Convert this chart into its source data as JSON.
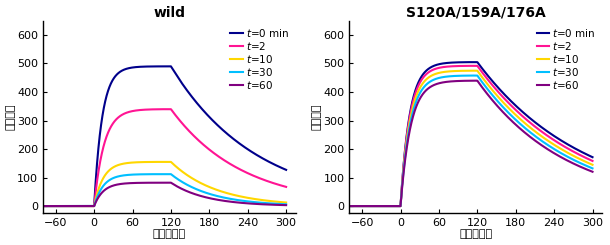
{
  "title_left": "wild",
  "title_right": "S120A/159A/176A",
  "ylabel": "結合活性",
  "xlabel": "時間（秒）",
  "xlim": [
    -80,
    315
  ],
  "ylim": [
    -25,
    650
  ],
  "yticks": [
    0,
    100,
    200,
    300,
    400,
    500,
    600
  ],
  "xticks": [
    -60,
    0,
    60,
    120,
    180,
    240,
    300
  ],
  "legend_labels": [
    "t=0 min",
    "t=2",
    "t=10",
    "t=30",
    "t=60"
  ],
  "colors": [
    "#00008B",
    "#FF1493",
    "#FFD700",
    "#00BFFF",
    "#800080"
  ],
  "linewidth": 1.5,
  "background_color": "#ffffff",
  "title_fontsize": 10,
  "axis_fontsize": 8,
  "tick_fontsize": 8,
  "legend_fontsize": 7.5
}
